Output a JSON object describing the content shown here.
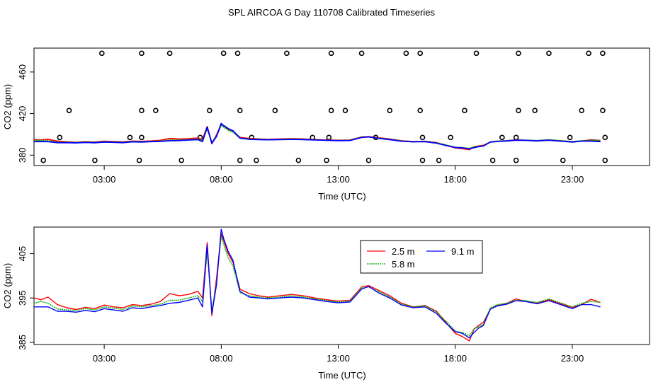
{
  "title": "SPL AIRCOA G  Day 110708  Calibrated Timeseries",
  "colors": {
    "series_2_5": "#ff0000",
    "series_5_8": "#00b000",
    "series_9_1": "#0000ff",
    "axis": "#000000"
  },
  "chart_data": [
    {
      "id": "top",
      "type": "line",
      "xlabel": "Time (UTC)",
      "ylabel": "CO2 (ppm)",
      "xlim": [
        0,
        26.3
      ],
      "ylim": [
        370,
        483
      ],
      "xticks": [
        3,
        8,
        13,
        18,
        23
      ],
      "xtick_labels": [
        "03:00",
        "08:00",
        "13:00",
        "18:00",
        "23:00"
      ],
      "yticks": [
        380,
        420,
        460
      ],
      "ytick_labels": [
        "380",
        "420",
        "460"
      ],
      "flag_points": {
        "x": [
          2.9,
          4.6,
          5.8,
          8.1,
          8.7,
          10.8,
          12.7,
          14.0,
          15.9,
          16.5,
          18.9,
          20.7,
          22.0,
          23.7,
          24.3,
          1.5,
          4.6,
          5.2,
          7.5,
          8.8,
          10.3,
          12.7,
          13.3,
          15.2,
          16.5,
          18.4,
          20.7,
          21.4,
          23.4,
          24.3,
          1.1,
          4.1,
          4.6,
          7.1,
          9.3,
          11.9,
          12.6,
          14.6,
          16.6,
          17.8,
          20.0,
          20.6,
          22.9,
          24.4,
          0.4,
          2.6,
          4.5,
          6.3,
          8.8,
          9.5,
          11.3,
          12.5,
          14.3,
          16.6,
          17.3,
          19.6,
          20.6,
          22.6,
          24.4
        ],
        "y": [
          478,
          478,
          478,
          478,
          478,
          478,
          478,
          478,
          478,
          478,
          478,
          478,
          478,
          478,
          478,
          423,
          423,
          423,
          423,
          423,
          423,
          423,
          423,
          423,
          423,
          423,
          423,
          423,
          423,
          423,
          397,
          397,
          397,
          397,
          397,
          397,
          397,
          397,
          397,
          397,
          397,
          397,
          397,
          397,
          375,
          375,
          375,
          375,
          375,
          375,
          375,
          375,
          375,
          375,
          375,
          375,
          375,
          375,
          375
        ]
      }
    },
    {
      "id": "bottom",
      "type": "line",
      "xlabel": "Time (UTC)",
      "ylabel": "CO2 (ppm)",
      "xlim": [
        0,
        26.3
      ],
      "ylim": [
        384.5,
        411
      ],
      "xticks": [
        3,
        8,
        13,
        18,
        23
      ],
      "xtick_labels": [
        "03:00",
        "08:00",
        "13:00",
        "18:00",
        "23:00"
      ],
      "yticks": [
        385,
        395,
        405
      ],
      "ytick_labels": [
        "385",
        "395",
        "405"
      ],
      "legend": {
        "position": "top-center",
        "entries": [
          "2.5 m",
          "5.8 m",
          "9.1 m"
        ]
      }
    }
  ],
  "series": [
    {
      "name": "2.5 m",
      "x": [
        0.0,
        0.3,
        0.6,
        1.0,
        1.4,
        1.8,
        2.2,
        2.6,
        3.0,
        3.4,
        3.8,
        4.2,
        4.6,
        5.0,
        5.4,
        5.8,
        6.2,
        6.6,
        7.0,
        7.2,
        7.4,
        7.6,
        7.8,
        8.0,
        8.1,
        8.3,
        8.5,
        8.8,
        9.2,
        9.6,
        10.0,
        10.5,
        11.0,
        11.5,
        12.0,
        12.5,
        13.0,
        13.5,
        14.0,
        14.3,
        14.7,
        15.2,
        15.7,
        16.2,
        16.7,
        17.2,
        17.6,
        18.0,
        18.3,
        18.6,
        18.8,
        19.0,
        19.2,
        19.5,
        19.8,
        20.2,
        20.6,
        21.0,
        21.5,
        22.0,
        22.5,
        23.0,
        23.4,
        23.8,
        24.2
      ],
      "y": [
        395.0,
        394.6,
        395.2,
        393.5,
        392.8,
        392.4,
        392.9,
        392.6,
        393.4,
        393.0,
        392.8,
        393.5,
        393.3,
        393.6,
        394.2,
        396.0,
        395.5,
        395.8,
        396.5,
        395.0,
        407.5,
        391.0,
        399.5,
        409.5,
        408.0,
        405.0,
        403.0,
        397.0,
        396.0,
        395.5,
        395.2,
        395.5,
        395.8,
        395.5,
        395.0,
        394.6,
        394.3,
        394.5,
        397.5,
        397.8,
        396.8,
        395.5,
        393.8,
        393.0,
        393.3,
        392.0,
        389.5,
        387.0,
        386.3,
        385.3,
        388.0,
        388.8,
        389.5,
        392.5,
        393.3,
        393.8,
        394.8,
        394.2,
        393.8,
        394.6,
        393.7,
        392.9,
        393.5,
        394.7,
        394.0
      ]
    },
    {
      "name": "5.8 m",
      "x": [
        0.0,
        0.3,
        0.6,
        1.0,
        1.4,
        1.8,
        2.2,
        2.6,
        3.0,
        3.4,
        3.8,
        4.2,
        4.6,
        5.0,
        5.4,
        5.8,
        6.2,
        6.6,
        7.0,
        7.2,
        7.4,
        7.6,
        7.8,
        8.0,
        8.1,
        8.3,
        8.5,
        8.8,
        9.2,
        9.6,
        10.0,
        10.5,
        11.0,
        11.5,
        12.0,
        12.5,
        13.0,
        13.5,
        14.0,
        14.3,
        14.7,
        15.2,
        15.7,
        16.2,
        16.7,
        17.2,
        17.6,
        18.0,
        18.3,
        18.6,
        18.8,
        19.0,
        19.2,
        19.5,
        19.8,
        20.2,
        20.6,
        21.0,
        21.5,
        22.0,
        22.5,
        23.0,
        23.4,
        23.8,
        24.2
      ],
      "y": [
        393.8,
        394.2,
        393.8,
        392.5,
        392.3,
        392.2,
        392.6,
        392.3,
        393.0,
        392.7,
        392.4,
        393.2,
        393.0,
        393.3,
        393.6,
        394.5,
        394.5,
        395.0,
        395.5,
        394.2,
        405.5,
        392.0,
        398.5,
        409.0,
        407.2,
        404.0,
        402.2,
        396.2,
        395.5,
        395.2,
        395.0,
        395.2,
        395.5,
        395.2,
        394.8,
        394.4,
        394.1,
        394.3,
        397.2,
        397.5,
        396.5,
        395.2,
        393.6,
        393.0,
        393.2,
        391.8,
        389.8,
        387.5,
        387.2,
        386.5,
        388.0,
        388.5,
        389.0,
        392.8,
        393.5,
        393.8,
        394.5,
        394.4,
        394.0,
        394.8,
        393.9,
        393.0,
        393.8,
        394.2,
        394.0
      ]
    },
    {
      "name": "9.1 m",
      "x": [
        0.0,
        0.3,
        0.6,
        1.0,
        1.4,
        1.8,
        2.2,
        2.6,
        3.0,
        3.4,
        3.8,
        4.2,
        4.6,
        5.0,
        5.4,
        5.8,
        6.2,
        6.6,
        7.0,
        7.2,
        7.4,
        7.6,
        7.8,
        8.0,
        8.1,
        8.3,
        8.5,
        8.8,
        9.2,
        9.6,
        10.0,
        10.5,
        11.0,
        11.5,
        12.0,
        12.5,
        13.0,
        13.5,
        14.0,
        14.3,
        14.7,
        15.2,
        15.7,
        16.2,
        16.7,
        17.2,
        17.6,
        18.0,
        18.3,
        18.6,
        18.8,
        19.0,
        19.2,
        19.5,
        19.8,
        20.2,
        20.6,
        21.0,
        21.5,
        22.0,
        22.5,
        23.0,
        23.4,
        23.8,
        24.2
      ],
      "y": [
        393.0,
        393.0,
        393.0,
        392.0,
        392.0,
        391.8,
        392.2,
        391.9,
        392.6,
        392.3,
        392.0,
        392.8,
        392.6,
        393.0,
        393.3,
        393.8,
        394.0,
        394.5,
        395.0,
        393.0,
        407.0,
        391.5,
        398.0,
        410.5,
        408.5,
        405.5,
        403.5,
        396.5,
        395.2,
        395.0,
        394.8,
        395.0,
        395.2,
        395.0,
        394.6,
        394.2,
        393.9,
        394.1,
        397.0,
        397.6,
        396.2,
        395.0,
        393.4,
        392.8,
        393.0,
        391.5,
        389.3,
        387.4,
        387.0,
        386.0,
        387.2,
        388.2,
        388.8,
        392.5,
        393.2,
        393.6,
        394.4,
        394.2,
        393.7,
        394.4,
        393.5,
        392.6,
        393.5,
        393.5,
        393.0
      ]
    }
  ]
}
